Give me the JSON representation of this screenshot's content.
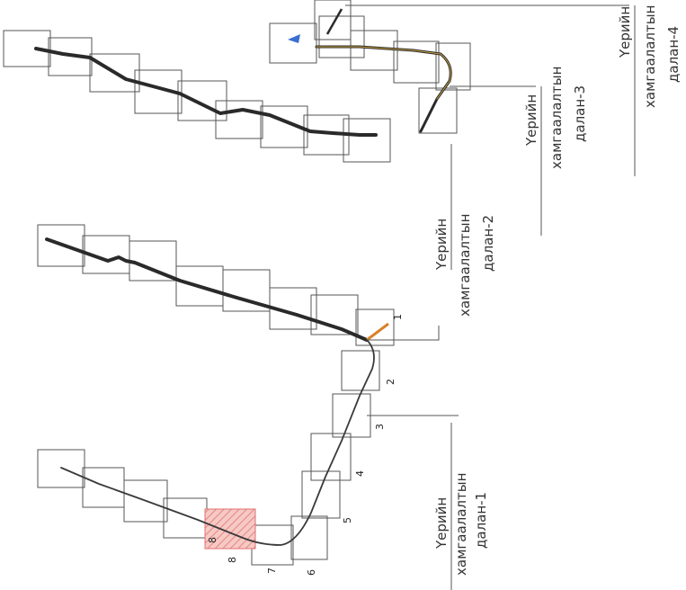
{
  "colors": {
    "line": "#2a2a2a",
    "thin_line": "#3a3a3a",
    "box": "#555555",
    "hatch": "#e07070",
    "hatch_fill": "#f6c9c4",
    "accent_orange": "#d9822b",
    "marker_blue": "#3b6fd1"
  },
  "labels": {
    "corridor_1": {
      "line1": "Үерийн",
      "line2": "хамгаалалтын",
      "line3": "далан-1"
    },
    "corridor_2": {
      "line1": "Үерийн",
      "line2": "хамгаалалтын",
      "line3": "далан-2"
    },
    "corridor_3": {
      "line1": "Үерийн",
      "line2": "хамгаалалтын",
      "line3": "далан-3"
    },
    "corridor_4": {
      "line1": "Үерийн",
      "line2": "хамгаалалтын",
      "line3": "далан-4"
    }
  },
  "section_numbers": [
    "1",
    "2",
    "3",
    "4",
    "5",
    "6",
    "7",
    "8",
    "8"
  ]
}
